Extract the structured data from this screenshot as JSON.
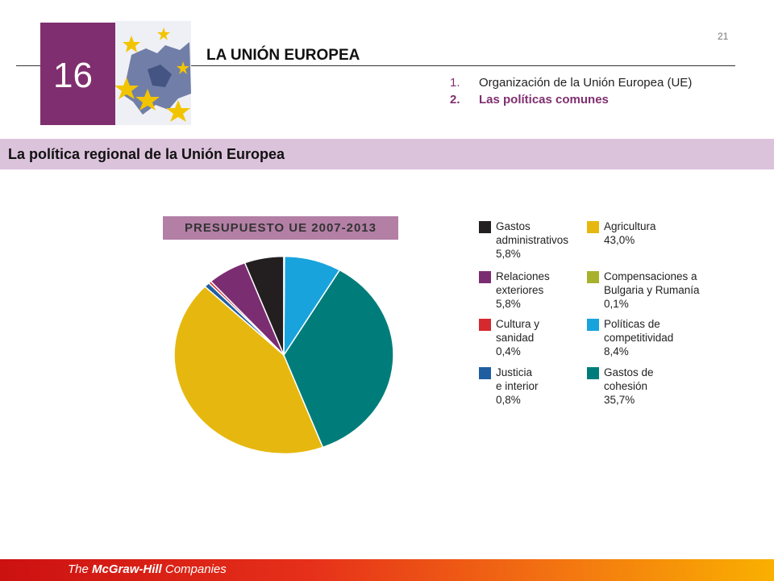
{
  "page_number": "21",
  "chapter": {
    "number": "16",
    "title": "LA UNIÓN EUROPEA"
  },
  "toc": [
    {
      "num": "1.",
      "label": "Organización de la Unión Europea (UE)"
    },
    {
      "num": "2.",
      "label": "Las políticas comunes"
    }
  ],
  "section_title": "La política regional de la Unión Europea",
  "chart_title": "PRESUPUESTO UE 2007-2013",
  "chart_data": {
    "type": "pie",
    "title": "PRESUPUESTO UE 2007-2013",
    "unit": "%",
    "legend_position": "right",
    "slices": [
      {
        "label": "Gastos administrativos",
        "value": 5.8,
        "display": "5,8%",
        "color": "#231f20"
      },
      {
        "label": "Relaciones exteriores",
        "value": 5.8,
        "display": "5,8%",
        "color": "#7b2d72"
      },
      {
        "label": "Cultura y sanidad",
        "value": 0.4,
        "display": "0,4%",
        "color": "#d42a2f"
      },
      {
        "label": "Justicia e interior",
        "value": 0.8,
        "display": "0,8%",
        "color": "#1f5fa0"
      },
      {
        "label": "Agricultura",
        "value": 43.0,
        "display": "43,0%",
        "color": "#e6b80f"
      },
      {
        "label": "Compensaciones a Bulgaria y Rumanía",
        "value": 0.1,
        "display": "0,1%",
        "color": "#a8b12b"
      },
      {
        "label": "Políticas de competitividad",
        "value": 8.4,
        "display": "8,4%",
        "color": "#19a3dd"
      },
      {
        "label": "Gastos de cohesión",
        "value": 35.7,
        "display": "35,7%",
        "color": "#007d7a"
      }
    ]
  },
  "legend": [
    {
      "label": "Gastos\nadministrativos",
      "value": "5,8%",
      "color": "#231f20"
    },
    {
      "label": "Relaciones\nexteriores",
      "value": "5,8%",
      "color": "#7b2d72"
    },
    {
      "label": "Cultura y\nsanidad",
      "value": "0,4%",
      "color": "#d42a2f"
    },
    {
      "label": "Justicia\ne interior",
      "value": "0,8%",
      "color": "#1f5fa0"
    },
    {
      "label": "Agricultura",
      "value": "43,0%",
      "color": "#e6b80f"
    },
    {
      "label": "Compensaciones a\nBulgaria y Rumanía",
      "value": "0,1%",
      "color": "#a8b12b"
    },
    {
      "label": "Políticas de\ncompetitividad",
      "value": "8,4%",
      "color": "#19a3dd"
    },
    {
      "label": "Gastos de\ncohesión",
      "value": "35,7%",
      "color": "#007d7a"
    }
  ],
  "footer": {
    "prefix": "The ",
    "brand": "McGraw-Hill",
    "suffix": " Companies"
  },
  "colors": {
    "accent": "#7f2f6f",
    "section_bar": "#dcc3dc",
    "chart_title_bg": "#b37fa5"
  }
}
